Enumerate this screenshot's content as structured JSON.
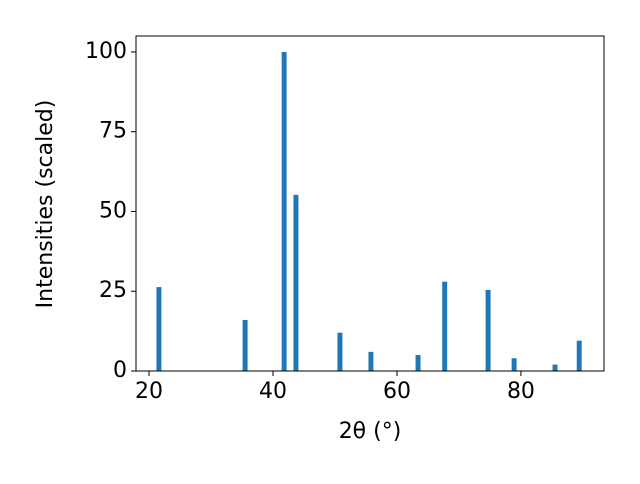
{
  "chart_data": {
    "type": "bar",
    "x_label": "2θ (°)",
    "y_label": "Intensities (scaled)",
    "x": [
      21.6,
      35.5,
      41.8,
      43.7,
      50.8,
      55.8,
      63.4,
      67.7,
      74.7,
      78.9,
      85.5,
      89.4
    ],
    "values": [
      26.3,
      16,
      100,
      55.2,
      12,
      6,
      5,
      28,
      25.4,
      4,
      2,
      9.5
    ],
    "color": "#1f77b4",
    "xlim": [
      17.9,
      93.4
    ],
    "xticks": [
      20,
      40,
      60,
      80
    ],
    "ylim": [
      0,
      105
    ],
    "yticks": [
      0,
      25,
      50,
      75,
      100
    ],
    "grid": false
  }
}
